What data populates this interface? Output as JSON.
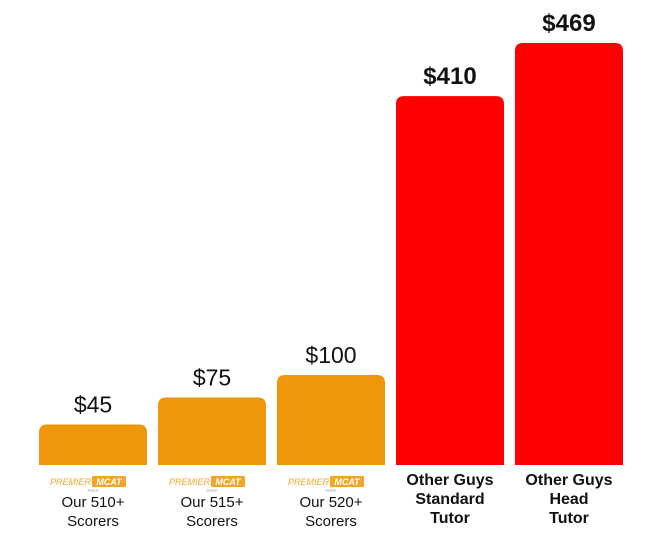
{
  "chart_data": {
    "type": "bar",
    "ylim": [
      0,
      469
    ],
    "grid": false,
    "categories": [
      {
        "lines": [
          "Our 510+",
          "Scorers"
        ],
        "logo": {
          "word1": "PREMIER",
          "word2": "MCAT",
          "sub": "PREP"
        },
        "emphasis": false
      },
      {
        "lines": [
          "Our 515+",
          "Scorers"
        ],
        "logo": {
          "word1": "PREMIER",
          "word2": "MCAT",
          "sub": "PREP"
        },
        "emphasis": false
      },
      {
        "lines": [
          "Our 520+",
          "Scorers"
        ],
        "logo": {
          "word1": "PREMIER",
          "word2": "MCAT",
          "sub": "PREP"
        },
        "emphasis": false
      },
      {
        "lines": [
          "Other Guys",
          "Standard",
          "Tutor"
        ],
        "logo": null,
        "emphasis": true
      },
      {
        "lines": [
          "Other Guys",
          "Head",
          "Tutor"
        ],
        "logo": null,
        "emphasis": true
      }
    ],
    "values": [
      45,
      75,
      100,
      410,
      469
    ],
    "value_labels": [
      "$45",
      "$75",
      "$100",
      "$410",
      "$469"
    ],
    "colors": [
      "#F0960A",
      "#F0960A",
      "#F0960A",
      "#FF0000",
      "#FF0000"
    ],
    "logo_colors": {
      "word1": "#F3A52A",
      "box": "#F3A52A",
      "word2": "#ffffff"
    }
  }
}
